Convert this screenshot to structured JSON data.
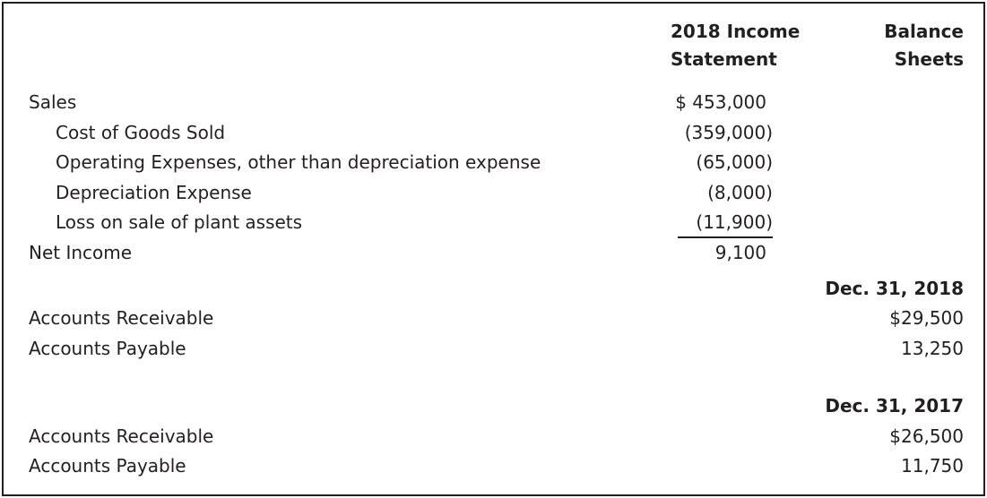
{
  "page": {
    "colors": {
      "text": "#231f20",
      "border": "#231f20",
      "background": "#ffffff"
    }
  },
  "table": {
    "headers": {
      "income_statement": {
        "line1": "2018 Income",
        "line2": "Statement"
      },
      "balance_sheets": {
        "line1": "Balance",
        "line2": "Sheets"
      }
    },
    "income_statement": {
      "rows": [
        {
          "label": "Sales",
          "value": "$ 453,000"
        },
        {
          "label": "Cost of Goods Sold",
          "value": "(359,000)"
        },
        {
          "label": "Operating Expenses, other than depreciation expense",
          "value": "(65,000)"
        },
        {
          "label": "Depreciation Expense",
          "value": "(8,000)"
        },
        {
          "label": "Loss on sale of plant assets",
          "value": "(11,900)"
        },
        {
          "label": "Net Income",
          "value": "9,100"
        }
      ]
    },
    "balance_sheets": {
      "periods": [
        {
          "date": "Dec. 31, 2018",
          "rows": [
            {
              "label": "Accounts Receivable",
              "value": "$29,500"
            },
            {
              "label": "Accounts Payable",
              "value": "13,250"
            }
          ]
        },
        {
          "date": "Dec. 31, 2017",
          "rows": [
            {
              "label": "Accounts Receivable",
              "value": "$26,500"
            },
            {
              "label": "Accounts Payable",
              "value": "11,750"
            }
          ]
        }
      ]
    }
  }
}
